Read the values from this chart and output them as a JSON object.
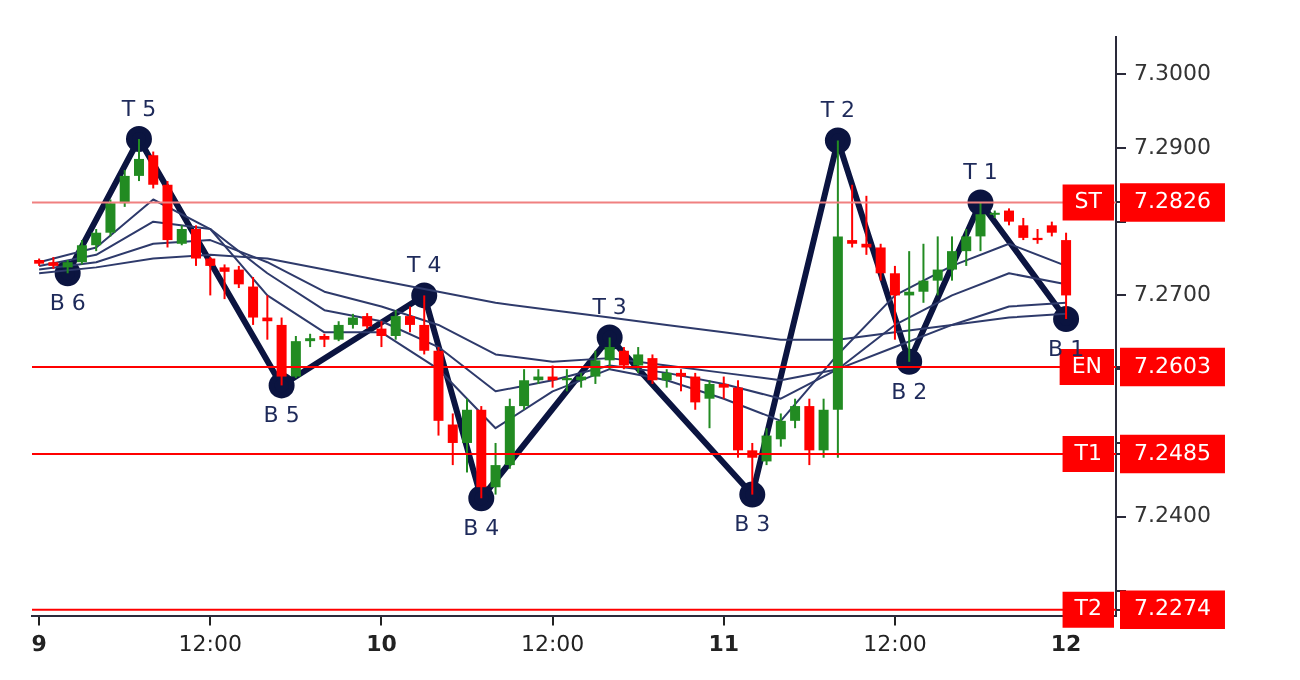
{
  "chart_data": {
    "type": "candlestick",
    "x": [
      "--01-09T00:00",
      "--01-09T01:00",
      "--01-09T02:00",
      "--01-09T03:00",
      "--01-09T04:00",
      "--01-09T05:00",
      "--01-09T06:00",
      "--01-09T07:00",
      "--01-09T08:00",
      "--01-09T09:00",
      "--01-09T10:00",
      "--01-09T11:00",
      "--01-09T12:00",
      "--01-09T13:00",
      "--01-09T14:00",
      "--01-09T15:00",
      "--01-09T16:00",
      "--01-09T17:00",
      "--01-09T18:00",
      "--01-09T19:00",
      "--01-09T20:00",
      "--01-09T21:00",
      "--01-09T22:00",
      "--01-09T23:00",
      "--01-10T00:00",
      "--01-10T01:00",
      "--01-10T02:00",
      "--01-10T03:00",
      "--01-10T04:00",
      "--01-10T05:00",
      "--01-10T06:00",
      "--01-10T07:00",
      "--01-10T08:00",
      "--01-10T09:00",
      "--01-10T10:00",
      "--01-10T11:00",
      "--01-10T12:00",
      "--01-10T13:00",
      "--01-10T14:00",
      "--01-10T15:00",
      "--01-10T16:00",
      "--01-10T17:00",
      "--01-10T18:00",
      "--01-10T19:00",
      "--01-10T20:00",
      "--01-10T21:00",
      "--01-10T22:00",
      "--01-10T23:00",
      "--01-11T00:00",
      "--01-11T01:00",
      "--01-11T02:00",
      "--01-11T03:00",
      "--01-11T04:00",
      "--01-11T05:00",
      "--01-11T06:00",
      "--01-11T07:00",
      "--01-11T08:00",
      "--01-11T09:00",
      "--01-11T10:00",
      "--01-11T11:00",
      "--01-11T12:00",
      "--01-11T13:00",
      "--01-11T14:00",
      "--01-11T15:00",
      "--01-11T16:00",
      "--01-11T17:00",
      "--01-11T18:00",
      "--01-11T19:00",
      "--01-11T20:00",
      "--01-11T21:00",
      "--01-11T22:00",
      "--01-11T23:00",
      "--01-12T00:00"
    ],
    "ohlc": [
      [
        7.2748,
        7.275,
        7.274,
        7.2743
      ],
      [
        7.2745,
        7.2752,
        7.2736,
        7.274
      ],
      [
        7.2738,
        7.2748,
        7.273,
        7.2745
      ],
      [
        7.2745,
        7.2775,
        7.2742,
        7.2768
      ],
      [
        7.2768,
        7.279,
        7.276,
        7.2785
      ],
      [
        7.2785,
        7.283,
        7.278,
        7.2825
      ],
      [
        7.2825,
        7.287,
        7.282,
        7.2862
      ],
      [
        7.2862,
        7.2912,
        7.2855,
        7.2885
      ],
      [
        7.289,
        7.2895,
        7.2845,
        7.285
      ],
      [
        7.285,
        7.2855,
        7.2765,
        7.2775
      ],
      [
        7.277,
        7.2795,
        7.2768,
        7.279
      ],
      [
        7.279,
        7.2795,
        7.274,
        7.275
      ],
      [
        7.275,
        7.2752,
        7.27,
        7.274
      ],
      [
        7.2738,
        7.2742,
        7.2695,
        7.2732
      ],
      [
        7.2735,
        7.274,
        7.271,
        7.2715
      ],
      [
        7.2712,
        7.2725,
        7.266,
        7.267
      ],
      [
        7.267,
        7.27,
        7.264,
        7.2665
      ],
      [
        7.266,
        7.267,
        7.2578,
        7.259
      ],
      [
        7.259,
        7.2645,
        7.2588,
        7.2638
      ],
      [
        7.2638,
        7.2648,
        7.263,
        7.2642
      ],
      [
        7.2645,
        7.2648,
        7.263,
        7.264
      ],
      [
        7.264,
        7.2665,
        7.2638,
        7.266
      ],
      [
        7.266,
        7.2675,
        7.2655,
        7.267
      ],
      [
        7.2672,
        7.2676,
        7.2655,
        7.2658
      ],
      [
        7.2655,
        7.2665,
        7.263,
        7.2645
      ],
      [
        7.2645,
        7.268,
        7.264,
        7.2672
      ],
      [
        7.2672,
        7.2685,
        7.265,
        7.266
      ],
      [
        7.266,
        7.27,
        7.262,
        7.2625
      ],
      [
        7.2625,
        7.263,
        7.251,
        7.253
      ],
      [
        7.2525,
        7.254,
        7.247,
        7.25
      ],
      [
        7.25,
        7.256,
        7.246,
        7.2545
      ],
      [
        7.2545,
        7.255,
        7.2425,
        7.244
      ],
      [
        7.244,
        7.25,
        7.243,
        7.247
      ],
      [
        7.247,
        7.256,
        7.2465,
        7.255
      ],
      [
        7.255,
        7.26,
        7.2545,
        7.2585
      ],
      [
        7.2585,
        7.26,
        7.258,
        7.259
      ],
      [
        7.259,
        7.2605,
        7.2575,
        7.2585
      ],
      [
        7.2585,
        7.26,
        7.257,
        7.2588
      ],
      [
        7.2585,
        7.2595,
        7.2575,
        7.259
      ],
      [
        7.259,
        7.2625,
        7.258,
        7.2612
      ],
      [
        7.2612,
        7.2643,
        7.26,
        7.263
      ],
      [
        7.2625,
        7.263,
        7.26,
        7.2605
      ],
      [
        7.2605,
        7.263,
        7.2595,
        7.262
      ],
      [
        7.2615,
        7.262,
        7.258,
        7.2585
      ],
      [
        7.2585,
        7.26,
        7.2575,
        7.2595
      ],
      [
        7.2595,
        7.26,
        7.257,
        7.259
      ],
      [
        7.259,
        7.2595,
        7.2545,
        7.2555
      ],
      [
        7.256,
        7.2585,
        7.252,
        7.258
      ],
      [
        7.258,
        7.259,
        7.256,
        7.2575
      ],
      [
        7.2575,
        7.2585,
        7.248,
        7.249
      ],
      [
        7.249,
        7.25,
        7.243,
        7.248
      ],
      [
        7.2475,
        7.252,
        7.247,
        7.251
      ],
      [
        7.2505,
        7.254,
        7.2495,
        7.253
      ],
      [
        7.253,
        7.256,
        7.252,
        7.255
      ],
      [
        7.255,
        7.256,
        7.247,
        7.249
      ],
      [
        7.249,
        7.256,
        7.248,
        7.2545
      ],
      [
        7.2545,
        7.291,
        7.248,
        7.278
      ],
      [
        7.2775,
        7.285,
        7.2765,
        7.277
      ],
      [
        7.277,
        7.2835,
        7.2755,
        7.2765
      ],
      [
        7.2765,
        7.277,
        7.272,
        7.273
      ],
      [
        7.273,
        7.274,
        7.264,
        7.27
      ],
      [
        7.27,
        7.276,
        7.261,
        7.2705
      ],
      [
        7.2705,
        7.277,
        7.269,
        7.272
      ],
      [
        7.272,
        7.278,
        7.27,
        7.2735
      ],
      [
        7.2735,
        7.278,
        7.272,
        7.276
      ],
      [
        7.276,
        7.279,
        7.274,
        7.278
      ],
      [
        7.278,
        7.2826,
        7.276,
        7.281
      ],
      [
        7.281,
        7.2815,
        7.2805,
        7.2812
      ],
      [
        7.2815,
        7.2818,
        7.2795,
        7.28
      ],
      [
        7.2795,
        7.2805,
        7.2775,
        7.2778
      ],
      [
        7.2778,
        7.279,
        7.277,
        7.2775
      ],
      [
        7.2795,
        7.28,
        7.278,
        7.2785
      ],
      [
        7.2775,
        7.2785,
        7.2668,
        7.27
      ]
    ],
    "colors": [
      "#ff0000",
      "#ff0000",
      "#228b22",
      "#228b22",
      "#228b22",
      "#228b22",
      "#228b22",
      "#228b22",
      "#ff0000",
      "#ff0000",
      "#228b22",
      "#ff0000",
      "#ff0000",
      "#ff0000",
      "#ff0000",
      "#ff0000",
      "#ff0000",
      "#ff0000",
      "#228b22",
      "#228b22",
      "#ff0000",
      "#228b22",
      "#228b22",
      "#ff0000",
      "#ff0000",
      "#228b22",
      "#ff0000",
      "#ff0000",
      "#ff0000",
      "#ff0000",
      "#228b22",
      "#ff0000",
      "#228b22",
      "#228b22",
      "#228b22",
      "#228b22",
      "#ff0000",
      "#228b22",
      "#228b22",
      "#228b22",
      "#228b22",
      "#ff0000",
      "#228b22",
      "#ff0000",
      "#228b22",
      "#ff0000",
      "#ff0000",
      "#228b22",
      "#ff0000",
      "#ff0000",
      "#ff0000",
      "#228b22",
      "#228b22",
      "#228b22",
      "#ff0000",
      "#228b22",
      "#228b22",
      "#ff0000",
      "#ff0000",
      "#ff0000",
      "#ff0000",
      "#228b22",
      "#228b22",
      "#228b22",
      "#228b22",
      "#228b22",
      "#228b22",
      "#228b22",
      "#ff0000",
      "#ff0000",
      "#ff0000",
      "#ff0000",
      "#ff0000"
    ],
    "series": [
      {
        "type": "line",
        "color": "#2e3a6b",
        "x": [
          "--01-09T00:00",
          "--01-09T04:00",
          "--01-09T08:00",
          "--01-09T12:00",
          "--01-09T16:00",
          "--01-09T20:00",
          "--01-10T00:00",
          "--01-10T04:00",
          "--01-10T08:00",
          "--01-10T12:00",
          "--01-10T16:00",
          "--01-10T20:00",
          "--01-11T00:00",
          "--01-11T04:00",
          "--01-11T08:00",
          "--01-11T12:00",
          "--01-11T16:00",
          "--01-11T20:00",
          "--01-12T00:00"
        ],
        "values": [
          7.2745,
          7.2765,
          7.283,
          7.279,
          7.27,
          7.265,
          7.265,
          7.26,
          7.252,
          7.257,
          7.26,
          7.2585,
          7.256,
          7.253,
          7.262,
          7.27,
          7.274,
          7.277,
          7.274
        ]
      },
      {
        "type": "line",
        "color": "#2e3a6b",
        "x": [
          "--01-09T00:00",
          "--01-09T04:00",
          "--01-09T08:00",
          "--01-09T12:00",
          "--01-09T16:00",
          "--01-09T20:00",
          "--01-10T00:00",
          "--01-10T04:00",
          "--01-10T08:00",
          "--01-10T12:00",
          "--01-10T16:00",
          "--01-10T20:00",
          "--01-11T00:00",
          "--01-11T04:00",
          "--01-11T08:00",
          "--01-11T12:00",
          "--01-11T16:00",
          "--01-11T20:00",
          "--01-12T00:00"
        ],
        "values": [
          7.274,
          7.2755,
          7.28,
          7.279,
          7.273,
          7.268,
          7.2665,
          7.263,
          7.257,
          7.2585,
          7.2605,
          7.2595,
          7.258,
          7.256,
          7.26,
          7.266,
          7.27,
          7.273,
          7.2715
        ]
      },
      {
        "type": "line",
        "color": "#2e3a6b",
        "x": [
          "--01-09T00:00",
          "--01-09T04:00",
          "--01-09T08:00",
          "--01-09T12:00",
          "--01-09T16:00",
          "--01-09T20:00",
          "--01-10T00:00",
          "--01-10T04:00",
          "--01-10T08:00",
          "--01-10T12:00",
          "--01-10T16:00",
          "--01-10T20:00",
          "--01-11T00:00",
          "--01-11T04:00",
          "--01-11T08:00",
          "--01-11T12:00",
          "--01-11T16:00",
          "--01-11T20:00",
          "--01-12T00:00"
        ],
        "values": [
          7.2735,
          7.2745,
          7.277,
          7.2775,
          7.2745,
          7.2705,
          7.2685,
          7.266,
          7.262,
          7.261,
          7.2615,
          7.2605,
          7.2595,
          7.2585,
          7.26,
          7.263,
          7.266,
          7.2685,
          7.269
        ]
      },
      {
        "type": "line",
        "color": "#2e3a6b",
        "x": [
          "--01-09T00:00",
          "--01-09T04:00",
          "--01-09T08:00",
          "--01-09T12:00",
          "--01-09T16:00",
          "--01-09T20:00",
          "--01-10T00:00",
          "--01-10T04:00",
          "--01-10T08:00",
          "--01-10T12:00",
          "--01-10T16:00",
          "--01-10T20:00",
          "--01-11T00:00",
          "--01-11T04:00",
          "--01-11T08:00",
          "--01-11T12:00",
          "--01-11T16:00",
          "--01-11T20:00",
          "--01-12T00:00"
        ],
        "values": [
          7.273,
          7.2738,
          7.275,
          7.2755,
          7.275,
          7.2735,
          7.272,
          7.2705,
          7.269,
          7.268,
          7.267,
          7.266,
          7.265,
          7.264,
          7.264,
          7.265,
          7.266,
          7.267,
          7.2675
        ]
      },
      {
        "type": "line",
        "color": "#0b1440",
        "marker": "circle",
        "x": [
          "--01-09T02:00",
          "--01-09T07:00",
          "--01-09T17:00",
          "--01-10T03:00",
          "--01-10T07:00",
          "--01-10T16:00",
          "--01-11T02:00",
          "--01-11T08:00",
          "--01-11T13:00",
          "--01-11T18:00",
          "--01-12T00:00"
        ],
        "values": [
          7.273,
          7.2912,
          7.2578,
          7.27,
          7.2425,
          7.2643,
          7.243,
          7.291,
          7.261,
          7.2826,
          7.2668
        ]
      }
    ],
    "annotations": [
      {
        "text": "B 6",
        "x": "--01-09T02:00",
        "y": 7.273
      },
      {
        "text": "T 5",
        "x": "--01-09T07:00",
        "y": 7.2912
      },
      {
        "text": "B 5",
        "x": "--01-09T17:00",
        "y": 7.2578
      },
      {
        "text": "T 4",
        "x": "--01-10T03:00",
        "y": 7.27
      },
      {
        "text": "B 4",
        "x": "--01-10T07:00",
        "y": 7.2425
      },
      {
        "text": "T 3",
        "x": "--01-10T16:00",
        "y": 7.2643
      },
      {
        "text": "B 3",
        "x": "--01-11T02:00",
        "y": 7.243
      },
      {
        "text": "T 2",
        "x": "--01-11T08:00",
        "y": 7.291
      },
      {
        "text": "B 2",
        "x": "--01-11T13:00",
        "y": 7.261
      },
      {
        "text": "T 1",
        "x": "--01-11T18:00",
        "y": 7.2826
      },
      {
        "text": "B 1",
        "x": "--01-12T00:00",
        "y": 7.2668
      }
    ],
    "ref_lines": [
      {
        "axis": "y",
        "value": 7.2826,
        "label": "ST",
        "color": "#f08080"
      },
      {
        "axis": "y",
        "value": 7.2603,
        "label": "EN",
        "color": "#ff0000"
      },
      {
        "axis": "y",
        "value": 7.2485,
        "label": "T1",
        "color": "#ff0000"
      },
      {
        "axis": "y",
        "value": 7.2274,
        "label": "T2",
        "color": "#ff0000"
      }
    ],
    "xlim": [
      "--01-08T23:30",
      "--01-12T03:30"
    ],
    "xticks": [
      {
        "value": "--01-09T00:00",
        "label": "9"
      },
      {
        "value": "--01-09T12:00",
        "label": "12:00"
      },
      {
        "value": "--01-10T00:00",
        "label": "10"
      },
      {
        "value": "--01-10T12:00",
        "label": "12:00"
      },
      {
        "value": "--01-11T00:00",
        "label": "11"
      },
      {
        "value": "--01-11T12:00",
        "label": "12:00"
      },
      {
        "value": "--01-12T00:00",
        "label": "12"
      }
    ],
    "ylim": [
      7.2266,
      7.305
    ],
    "yticks": [
      {
        "value": 7.23,
        "label": null
      },
      {
        "value": 7.24,
        "label": "7.2400"
      },
      {
        "value": 7.25,
        "label": null
      },
      {
        "value": 7.26,
        "label": null
      },
      {
        "value": 7.27,
        "label": "7.2700"
      },
      {
        "value": 7.28,
        "label": null
      },
      {
        "value": 7.29,
        "label": "7.2900"
      },
      {
        "value": 7.3,
        "label": "7.3000"
      },
      {
        "value": 7.2274,
        "label": "7.2274"
      },
      {
        "value": 7.2485,
        "label": "7.2485"
      },
      {
        "value": 7.2603,
        "label": "7.2603"
      },
      {
        "value": 7.2826,
        "label": "7.2826"
      }
    ],
    "grid": false,
    "legend": false
  }
}
